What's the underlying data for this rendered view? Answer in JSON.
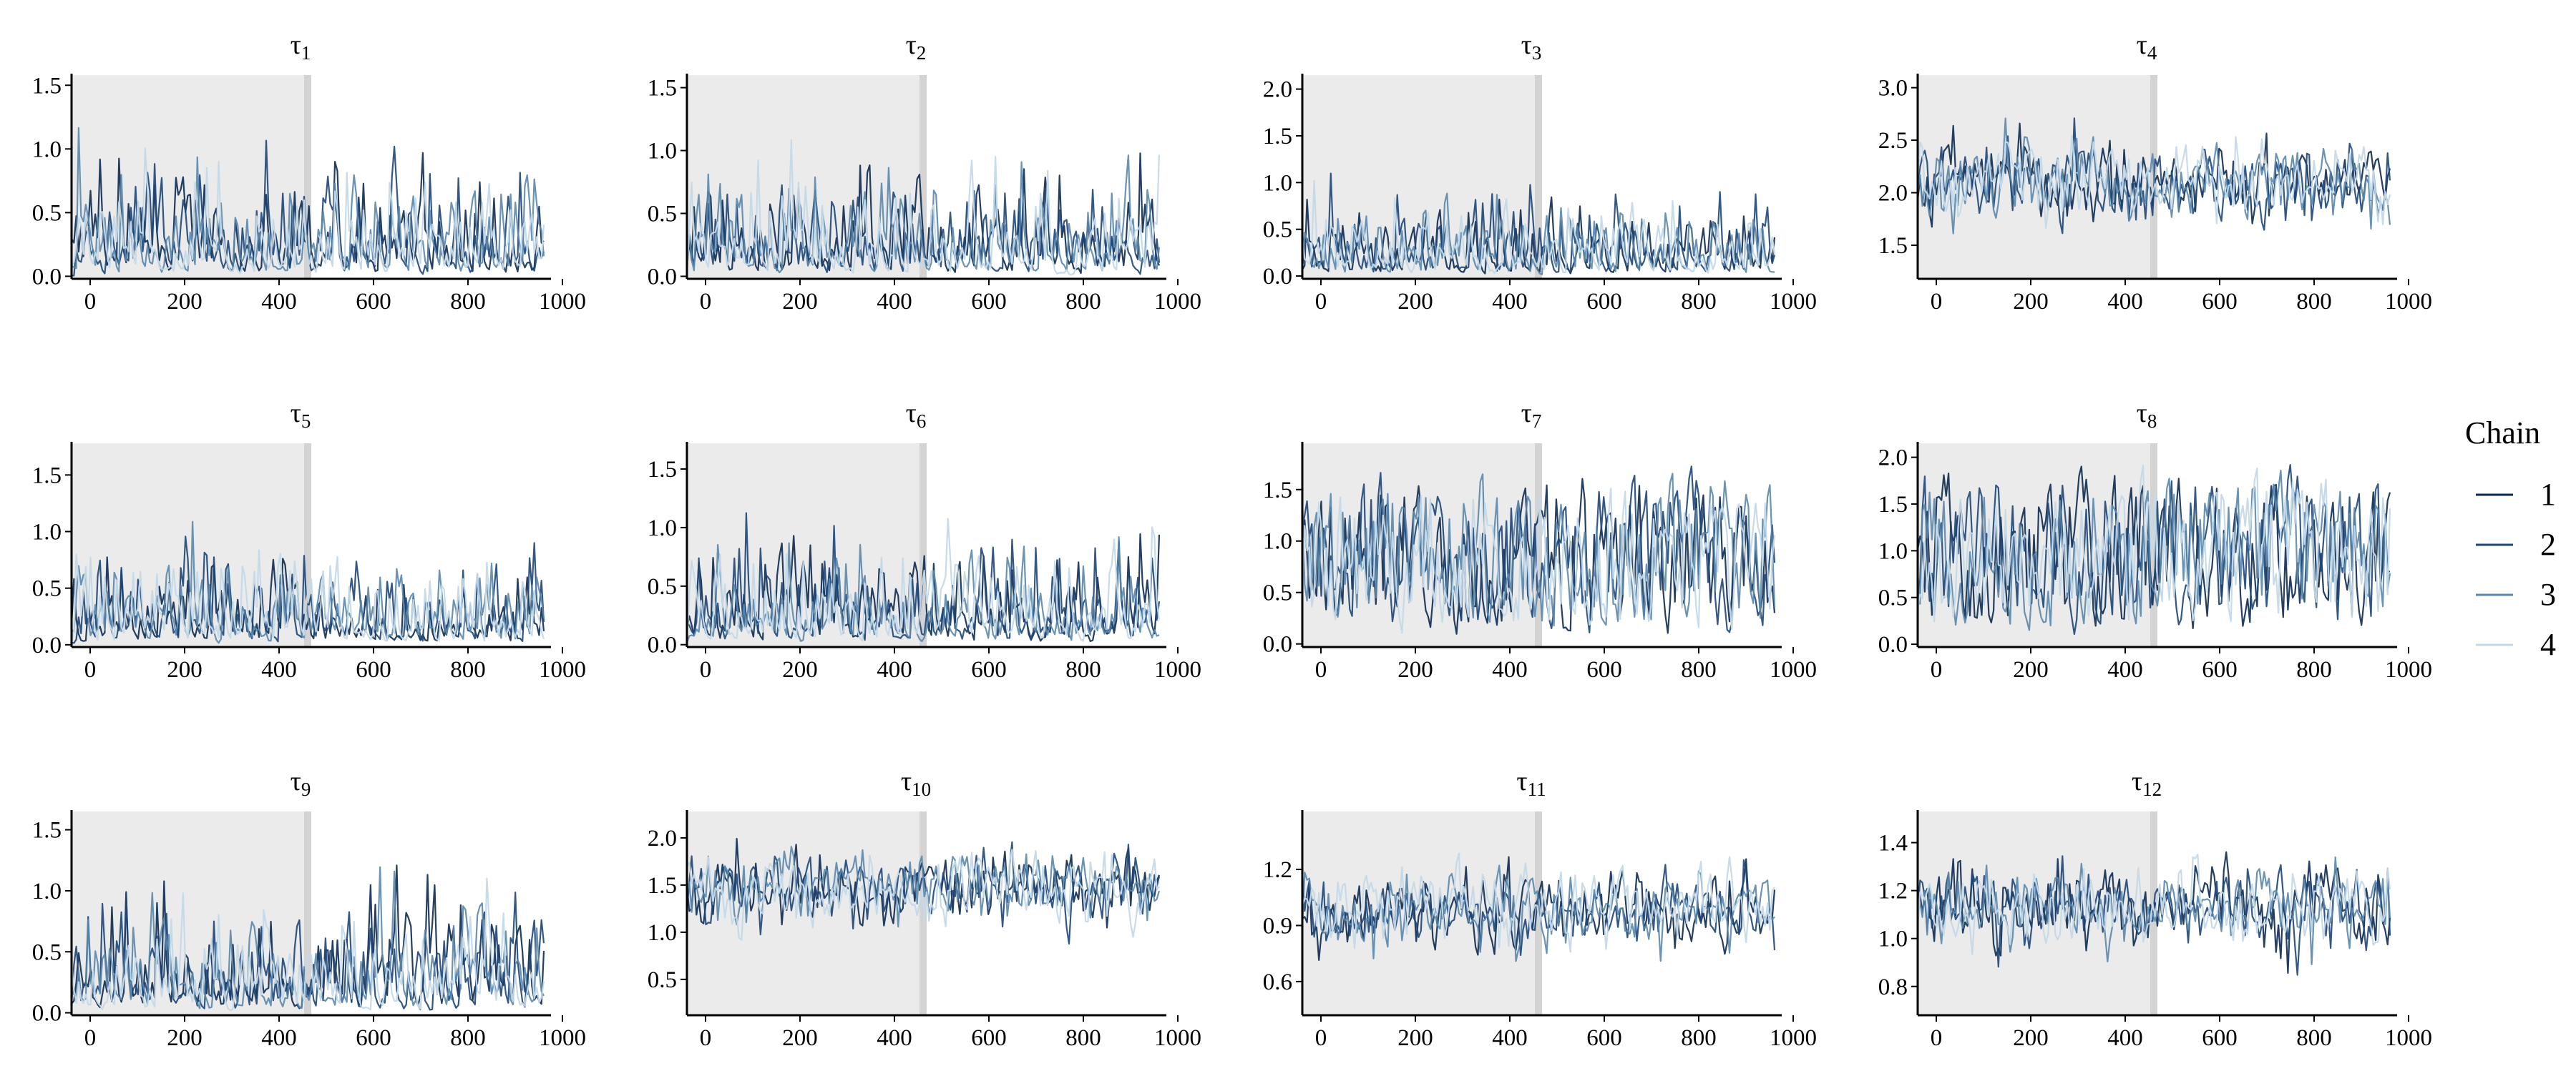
{
  "colors": {
    "chains": [
      "#0c2a50",
      "#1d4678",
      "#5a87ac",
      "#c5d9e8"
    ],
    "warmup_shade": "#ebebeb",
    "warmup_edge": "#d3d3d3",
    "axis": "#000000"
  },
  "legend": {
    "title": "Chain",
    "entries": [
      "1",
      "2",
      "3",
      "4"
    ]
  },
  "chart_data": [
    {
      "type": "line",
      "title_symbol": "τ",
      "title_subscript": "1",
      "xlabel": "",
      "ylabel": "",
      "xlim": [
        0,
        1000
      ],
      "xticks": [
        0,
        200,
        400,
        600,
        800,
        1000
      ],
      "xtick_labels": [
        "0",
        "200",
        "400",
        "600",
        "800",
        "1000"
      ],
      "ylim": [
        -0.02,
        1.58
      ],
      "yticks": [
        0.0,
        0.5,
        1.0,
        1.5
      ],
      "ytick_labels": [
        "0.0",
        "0.5",
        "1.0",
        "1.5"
      ],
      "warmup_end": 500,
      "series_profile": {
        "kind": "halfnormal",
        "center": 0.0,
        "scale": 0.5,
        "min": 0.0,
        "max": 1.55
      }
    },
    {
      "type": "line",
      "title_symbol": "τ",
      "title_subscript": "2",
      "xlabel": "",
      "ylabel": "",
      "xlim": [
        0,
        1000
      ],
      "xticks": [
        0,
        200,
        400,
        600,
        800,
        1000
      ],
      "xtick_labels": [
        "0",
        "200",
        "400",
        "600",
        "800",
        "1000"
      ],
      "ylim": [
        -0.02,
        1.6
      ],
      "yticks": [
        0.0,
        0.5,
        1.0,
        1.5
      ],
      "ytick_labels": [
        "0.0",
        "0.5",
        "1.0",
        "1.5"
      ],
      "warmup_end": 500,
      "series_profile": {
        "kind": "halfnormal",
        "center": 0.0,
        "scale": 0.52,
        "min": 0.0,
        "max": 1.58
      }
    },
    {
      "type": "line",
      "title_symbol": "τ",
      "title_subscript": "3",
      "xlabel": "",
      "ylabel": "",
      "xlim": [
        0,
        1000
      ],
      "xticks": [
        0,
        200,
        400,
        600,
        800,
        1000
      ],
      "xtick_labels": [
        "0",
        "200",
        "400",
        "600",
        "800",
        "1000"
      ],
      "ylim": [
        -0.03,
        2.15
      ],
      "yticks": [
        0.0,
        0.5,
        1.0,
        1.5,
        2.0
      ],
      "ytick_labels": [
        "0.0",
        "0.5",
        "1.0",
        "1.5",
        "2.0"
      ],
      "warmup_end": 500,
      "series_profile": {
        "kind": "halfnormal",
        "center": 0.0,
        "scale": 0.5,
        "min": 0.0,
        "max": 2.1
      }
    },
    {
      "type": "line",
      "title_symbol": "τ",
      "title_subscript": "4",
      "xlabel": "",
      "ylabel": "",
      "xlim": [
        0,
        1000
      ],
      "xticks": [
        0,
        200,
        400,
        600,
        800,
        1000
      ],
      "xtick_labels": [
        "0",
        "200",
        "400",
        "600",
        "800",
        "1000"
      ],
      "ylim": [
        1.18,
        3.12
      ],
      "yticks": [
        1.5,
        2.0,
        2.5,
        3.0
      ],
      "ytick_labels": [
        "1.5",
        "2.0",
        "2.5",
        "3.0"
      ],
      "warmup_end": 500,
      "series_profile": {
        "kind": "normal",
        "center": 2.1,
        "scale": 0.27,
        "min": 1.25,
        "max": 3.1
      }
    },
    {
      "type": "line",
      "title_symbol": "τ",
      "title_subscript": "5",
      "xlabel": "",
      "ylabel": "",
      "xlim": [
        0,
        1000
      ],
      "xticks": [
        0,
        200,
        400,
        600,
        800,
        1000
      ],
      "xtick_labels": [
        "0",
        "200",
        "400",
        "600",
        "800",
        "1000"
      ],
      "ylim": [
        -0.02,
        1.78
      ],
      "yticks": [
        0.0,
        0.5,
        1.0,
        1.5
      ],
      "ytick_labels": [
        "0.0",
        "0.5",
        "1.0",
        "1.5"
      ],
      "warmup_end": 500,
      "series_profile": {
        "kind": "halfnormal",
        "center": 0.0,
        "scale": 0.5,
        "min": 0.0,
        "max": 1.72
      }
    },
    {
      "type": "line",
      "title_symbol": "τ",
      "title_subscript": "6",
      "xlabel": "",
      "ylabel": "",
      "xlim": [
        0,
        1000
      ],
      "xticks": [
        0,
        200,
        400,
        600,
        800,
        1000
      ],
      "xtick_labels": [
        "0",
        "200",
        "400",
        "600",
        "800",
        "1000"
      ],
      "ylim": [
        -0.02,
        1.72
      ],
      "yticks": [
        0.0,
        0.5,
        1.0,
        1.5
      ],
      "ytick_labels": [
        "0.0",
        "0.5",
        "1.0",
        "1.5"
      ],
      "warmup_end": 500,
      "series_profile": {
        "kind": "halfnormal",
        "center": 0.0,
        "scale": 0.55,
        "min": 0.0,
        "max": 1.65
      }
    },
    {
      "type": "line",
      "title_symbol": "τ",
      "title_subscript": "7",
      "xlabel": "",
      "ylabel": "",
      "xlim": [
        0,
        1000
      ],
      "xticks": [
        0,
        200,
        400,
        600,
        800,
        1000
      ],
      "xtick_labels": [
        "0",
        "200",
        "400",
        "600",
        "800",
        "1000"
      ],
      "ylim": [
        -0.03,
        1.95
      ],
      "yticks": [
        0.0,
        0.5,
        1.0,
        1.5
      ],
      "ytick_labels": [
        "0.0",
        "0.5",
        "1.0",
        "1.5"
      ],
      "warmup_end": 500,
      "series_profile": {
        "kind": "uniformish",
        "center": 0.95,
        "scale": 0.45,
        "min": 0.0,
        "max": 1.85
      }
    },
    {
      "type": "line",
      "title_symbol": "τ",
      "title_subscript": "8",
      "xlabel": "",
      "ylabel": "",
      "xlim": [
        0,
        1000
      ],
      "xticks": [
        0,
        200,
        400,
        600,
        800,
        1000
      ],
      "xtick_labels": [
        "0",
        "200",
        "400",
        "600",
        "800",
        "1000"
      ],
      "ylim": [
        -0.03,
        2.15
      ],
      "yticks": [
        0.0,
        0.5,
        1.0,
        1.5,
        2.0
      ],
      "ytick_labels": [
        "0.0",
        "0.5",
        "1.0",
        "1.5",
        "2.0"
      ],
      "warmup_end": 500,
      "series_profile": {
        "kind": "uniformish",
        "center": 1.1,
        "scale": 0.48,
        "min": 0.0,
        "max": 2.1
      }
    },
    {
      "type": "line",
      "title_symbol": "τ",
      "title_subscript": "9",
      "xlabel": "",
      "ylabel": "",
      "xlim": [
        0,
        1000
      ],
      "xticks": [
        0,
        200,
        400,
        600,
        800,
        1000
      ],
      "xtick_labels": [
        "0",
        "200",
        "400",
        "600",
        "800",
        "1000"
      ],
      "ylim": [
        -0.02,
        1.65
      ],
      "yticks": [
        0.0,
        0.5,
        1.0,
        1.5
      ],
      "ytick_labels": [
        "0.0",
        "0.5",
        "1.0",
        "1.5"
      ],
      "warmup_end": 500,
      "series_profile": {
        "kind": "halfnormal",
        "center": 0.0,
        "scale": 0.5,
        "min": 0.0,
        "max": 1.6
      }
    },
    {
      "type": "line",
      "title_symbol": "τ",
      "title_subscript": "10",
      "xlabel": "",
      "ylabel": "",
      "xlim": [
        0,
        1000
      ],
      "xticks": [
        0,
        200,
        400,
        600,
        800,
        1000
      ],
      "xtick_labels": [
        "0",
        "200",
        "400",
        "600",
        "800",
        "1000"
      ],
      "ylim": [
        0.12,
        2.28
      ],
      "yticks": [
        0.5,
        1.0,
        1.5,
        2.0
      ],
      "ytick_labels": [
        "0.5",
        "1.0",
        "1.5",
        "2.0"
      ],
      "warmup_end": 500,
      "series_profile": {
        "kind": "normal",
        "center": 1.45,
        "scale": 0.27,
        "min": 0.2,
        "max": 2.2
      }
    },
    {
      "type": "line",
      "title_symbol": "τ",
      "title_subscript": "11",
      "xlabel": "",
      "ylabel": "",
      "xlim": [
        0,
        1000
      ],
      "xticks": [
        0,
        200,
        400,
        600,
        800,
        1000
      ],
      "xtick_labels": [
        "0",
        "200",
        "400",
        "600",
        "800",
        "1000"
      ],
      "ylim": [
        0.42,
        1.51
      ],
      "yticks": [
        0.6,
        0.9,
        1.2
      ],
      "ytick_labels": [
        "0.6",
        "0.9",
        "1.2"
      ],
      "warmup_end": 500,
      "series_profile": {
        "kind": "normal",
        "center": 0.98,
        "scale": 0.14,
        "min": 0.45,
        "max": 1.48
      }
    },
    {
      "type": "line",
      "title_symbol": "τ",
      "title_subscript": "12",
      "xlabel": "",
      "ylabel": "",
      "xlim": [
        0,
        1000
      ],
      "xticks": [
        0,
        200,
        400,
        600,
        800,
        1000
      ],
      "xtick_labels": [
        "0",
        "200",
        "400",
        "600",
        "800",
        "1000"
      ],
      "ylim": [
        0.68,
        1.53
      ],
      "yticks": [
        0.8,
        1.0,
        1.2,
        1.4
      ],
      "ytick_labels": [
        "0.8",
        "1.0",
        "1.2",
        "1.4"
      ],
      "warmup_end": 500,
      "series_profile": {
        "kind": "normal",
        "center": 1.13,
        "scale": 0.12,
        "min": 0.7,
        "max": 1.5
      }
    }
  ]
}
